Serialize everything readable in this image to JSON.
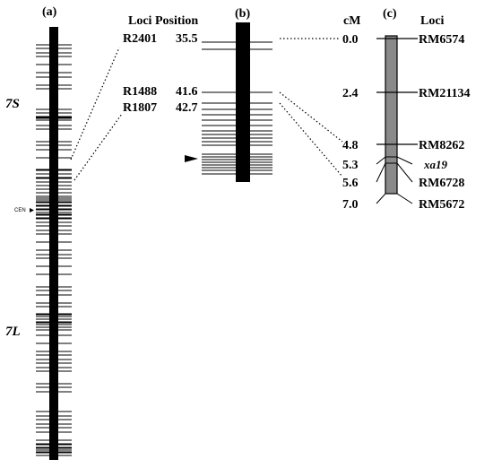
{
  "panels": {
    "a": {
      "label": "(a)",
      "short_arm": "7S",
      "long_arm": "7L",
      "centromere": "CEN"
    },
    "b": {
      "label": "(b)",
      "header": "Loci  Position",
      "markers": [
        {
          "locus": "R2401",
          "position": "35.5"
        },
        {
          "locus": "R1488",
          "position": "41.6"
        },
        {
          "locus": "R1807",
          "position": "42.7"
        }
      ]
    },
    "c": {
      "label": "(c)",
      "cm_header": "cM",
      "loci_header": "Loci",
      "markers": [
        {
          "cm": "0.0",
          "locus": "RM6574"
        },
        {
          "cm": "2.4",
          "locus": "RM21134"
        },
        {
          "cm": "4.8",
          "locus": "RM8262"
        },
        {
          "cm": "5.3",
          "locus": "xa19"
        },
        {
          "cm": "5.6",
          "locus": "RM6728"
        },
        {
          "cm": "7.0",
          "locus": "RM5672"
        }
      ]
    }
  }
}
